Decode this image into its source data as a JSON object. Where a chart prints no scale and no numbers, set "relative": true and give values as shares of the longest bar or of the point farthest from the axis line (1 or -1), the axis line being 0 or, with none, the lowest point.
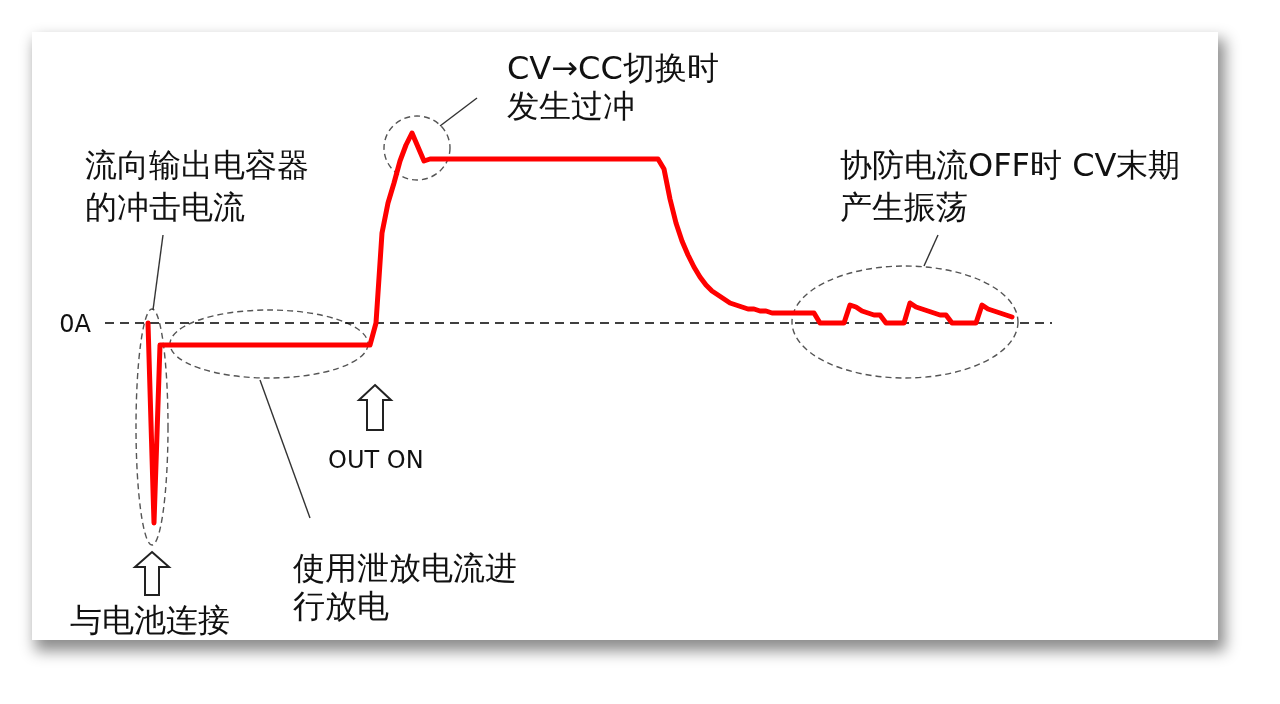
{
  "chart_data": {
    "type": "line",
    "relative": true,
    "categories": [
      null,
      null,
      null,
      null,
      null,
      null,
      null,
      null,
      null,
      null,
      null,
      null,
      null,
      null,
      null,
      null,
      null,
      null,
      null,
      null,
      null,
      null,
      null,
      null,
      null,
      null,
      null,
      null,
      null,
      null,
      null,
      null,
      null,
      null,
      null,
      null,
      null,
      null,
      null,
      null,
      null,
      null,
      null,
      null,
      null,
      null,
      null,
      null,
      null,
      null,
      null,
      null,
      null,
      null,
      null,
      null,
      null,
      null,
      null,
      null,
      null,
      null,
      null,
      null,
      null,
      null,
      null,
      null,
      null,
      null,
      null,
      null,
      null,
      null,
      null,
      null,
      null,
      null,
      null,
      null,
      null,
      null,
      null,
      null,
      null,
      null,
      null,
      null,
      null,
      null,
      null,
      null,
      null,
      null,
      null,
      null,
      null,
      null,
      null,
      null,
      null,
      null,
      null,
      null,
      null,
      null,
      null,
      null,
      null,
      null,
      null,
      null,
      null,
      null,
      null,
      null,
      null,
      null,
      null,
      null,
      null,
      null,
      null,
      null,
      null,
      null,
      null,
      null,
      null,
      null,
      null,
      null,
      null,
      null,
      null,
      null,
      null,
      null,
      null,
      null,
      null,
      null,
      null,
      null,
      null
    ],
    "series": [
      {
        "color": "#ff0000",
        "values": [
          0,
          -1,
          -0.11,
          -0.11,
          -0.11,
          -0.11,
          -0.11,
          -0.11,
          -0.11,
          -0.11,
          -0.11,
          -0.11,
          -0.11,
          -0.11,
          -0.11,
          -0.11,
          -0.11,
          -0.11,
          -0.11,
          -0.11,
          -0.11,
          -0.11,
          -0.11,
          -0.11,
          -0.11,
          -0.11,
          -0.11,
          -0.11,
          -0.11,
          -0.11,
          -0.11,
          -0.11,
          -0.11,
          -0.11,
          -0.11,
          -0.11,
          -0.11,
          -0.11,
          0,
          0.45,
          0.6,
          0.7,
          0.81,
          0.89,
          0.95,
          0.88,
          0.81,
          0.82,
          0.82,
          0.82,
          0.82,
          0.82,
          0.82,
          0.82,
          0.82,
          0.82,
          0.82,
          0.82,
          0.82,
          0.82,
          0.82,
          0.82,
          0.82,
          0.82,
          0.82,
          0.82,
          0.82,
          0.82,
          0.82,
          0.82,
          0.82,
          0.82,
          0.82,
          0.82,
          0.82,
          0.82,
          0.82,
          0.82,
          0.82,
          0.82,
          0.82,
          0.82,
          0.82,
          0.82,
          0.82,
          0.82,
          0.77,
          0.62,
          0.5,
          0.41,
          0.34,
          0.28,
          0.23,
          0.19,
          0.16,
          0.14,
          0.12,
          0.1,
          0.09,
          0.08,
          0.07,
          0.07,
          0.06,
          0.06,
          0.05,
          0.05,
          0.05,
          0.05,
          0.05,
          0.05,
          0.05,
          0.05,
          0,
          0,
          0,
          0,
          0,
          0.09,
          0.08,
          0.06,
          0.05,
          0.04,
          0.04,
          0,
          0,
          0,
          0,
          0.1,
          0.08,
          0.07,
          0.06,
          0.05,
          0.04,
          0.04,
          0,
          0,
          0,
          0,
          0,
          0.09,
          0.07,
          0.06,
          0.05,
          0.04,
          0.03
        ]
      }
    ],
    "ref_lines": [
      {
        "axis": "y",
        "value": 0,
        "label": "0A",
        "color": "#000000",
        "line_style": "dashed"
      }
    ],
    "annotations": [
      "流向输出电容器的冲击电流",
      "与电池连接",
      "使用泄放电流进行放电",
      "OUT ON",
      "CV→CC切换时发生过冲",
      "协防电流OFF时 CV末期产生振荡"
    ]
  }
}
